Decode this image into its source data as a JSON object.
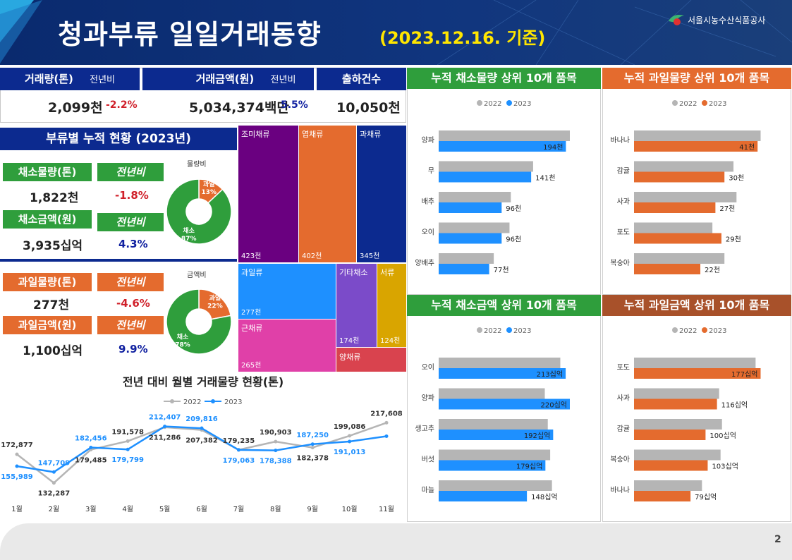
{
  "header": {
    "title": "청과부류 일일거래동향",
    "date": "(2023.12.16. 기준)",
    "org": "서울시농수산식품공사"
  },
  "summary": {
    "vol_label": "거래량(톤)",
    "yoy_label": "전년비",
    "amt_label": "거래금액(원)",
    "amt_yoy_label": "전년비",
    "cnt_label": "출하건수",
    "vol_value": "2,099천",
    "vol_yoy": "-2.2%",
    "amt_value": "5,034,374백만",
    "amt_yoy": "5.5%",
    "cnt_value": "10,050천"
  },
  "category": {
    "title": "부류별 누적 현황 (2023년)",
    "veg_vol_label": "채소물량(톤)",
    "veg_vol_yoy_label": "전년비",
    "veg_vol": "1,822천",
    "veg_vol_yoy": "-1.8%",
    "veg_amt_label": "채소금액(원)",
    "veg_amt_yoy_label": "전년비",
    "veg_amt": "3,935십억",
    "veg_amt_yoy": "4.3%",
    "fruit_vol_label": "과일물량(톤)",
    "fruit_vol_yoy_label": "전년비",
    "fruit_vol": "277천",
    "fruit_vol_yoy": "-4.6%",
    "fruit_amt_label": "과일금액(원)",
    "fruit_amt_yoy_label": "전년비",
    "fruit_amt": "1,100십억",
    "fruit_amt_yoy": "9.9%",
    "donut_vol_title": "물량비",
    "donut_amt_title": "금액비"
  },
  "treemap_labels": {
    "t1": "조미채류",
    "v1": "423천",
    "t2": "엽채류",
    "v2": "402천",
    "t3": "과채류",
    "v3": "345천",
    "t4": "과일류",
    "v4": "277천",
    "t5": "근채류",
    "v5": "265천",
    "t6": "기타채소",
    "v6": "174천",
    "t7": "서류",
    "v7": "124천",
    "t8": "양채류"
  },
  "panels": {
    "p1": "누적 채소물량 상위 10개 품목",
    "p2": "누적 과일물량 상위 10개 품목",
    "p3": "누적 채소금액 상위 10개 품목",
    "p4": "누적 과일금액 상위 10개 품목"
  },
  "page_number": "2",
  "colors": {
    "green": "#2f9e3c",
    "orange": "#e46b2e",
    "blue": "#1e90ff",
    "gray": "#b5b5b5",
    "navy": "#0c2a8f"
  },
  "chart_data": [
    {
      "type": "pie",
      "id": "vol_ratio",
      "title": "물량비",
      "labels": [
        "과일",
        "채소"
      ],
      "values": [
        13,
        87
      ],
      "value_labels": [
        "13%",
        "87%"
      ]
    },
    {
      "type": "pie",
      "id": "amt_ratio",
      "title": "금액비",
      "labels": [
        "과일",
        "채소"
      ],
      "values": [
        22,
        78
      ],
      "value_labels": [
        "22%",
        "78%"
      ]
    },
    {
      "type": "treemap",
      "id": "category_treemap",
      "labels": [
        "조미채류",
        "엽채류",
        "과채류",
        "과일류",
        "근채류",
        "기타채소",
        "서류",
        "양채류"
      ],
      "values": [
        423,
        402,
        345,
        277,
        265,
        174,
        124,
        null
      ],
      "value_labels": [
        "423천",
        "402천",
        "345천",
        "277천",
        "265천",
        "174천",
        "124천",
        ""
      ]
    },
    {
      "type": "line",
      "id": "monthly",
      "title": "전년 대비 월별 거래물량 현황(톤)",
      "categories": [
        "1월",
        "2월",
        "3월",
        "4월",
        "5월",
        "6월",
        "7월",
        "8월",
        "9월",
        "10월",
        "11월"
      ],
      "series": [
        {
          "name": "2022",
          "values": [
            172877,
            132287,
            179485,
            191578,
            211286,
            207382,
            179235,
            190903,
            182378,
            199086,
            217608
          ],
          "labels": [
            "172,877",
            "132,287",
            "179,485",
            "191,578",
            "211,286",
            "207,382",
            "179,235",
            "190,903",
            "182,378",
            "199,086",
            "217,608"
          ]
        },
        {
          "name": "2023",
          "values": [
            155989,
            147709,
            182456,
            179799,
            212407,
            209816,
            179063,
            178388,
            187250,
            191013,
            198500
          ],
          "labels": [
            "155,989",
            "147,709",
            "182,456",
            "179,799",
            "212,407",
            "209,816",
            "179,063",
            "178,388",
            "187,250",
            "191,013",
            ""
          ]
        }
      ],
      "legend": [
        "2022",
        "2023"
      ]
    },
    {
      "type": "bar",
      "id": "veg_vol",
      "legend": [
        "2022",
        "2023"
      ],
      "categories": [
        "양파",
        "무",
        "배추",
        "오이",
        "양배추"
      ],
      "series": [
        {
          "name": "2022",
          "values": [
            200,
            144,
            110,
            108,
            84
          ]
        },
        {
          "name": "2023",
          "values": [
            194,
            141,
            96,
            96,
            77
          ]
        }
      ],
      "labels": [
        "194천",
        "141천",
        "96천",
        "96천",
        "77천"
      ]
    },
    {
      "type": "bar",
      "id": "fruit_vol",
      "legend": [
        "2022",
        "2023"
      ],
      "categories": [
        "바나나",
        "감귤",
        "사과",
        "포도",
        "복숭아"
      ],
      "series": [
        {
          "name": "2022",
          "values": [
            42,
            33,
            34,
            26,
            30
          ]
        },
        {
          "name": "2023",
          "values": [
            41,
            30,
            27,
            29,
            22
          ]
        }
      ],
      "labels": [
        "41천",
        "30천",
        "27천",
        "29천",
        "22천"
      ]
    },
    {
      "type": "bar",
      "id": "veg_amt",
      "legend": [
        "2022",
        "2023"
      ],
      "categories": [
        "오이",
        "양파",
        "생고추",
        "버섯",
        "마늘"
      ],
      "series": [
        {
          "name": "2022",
          "values": [
            204,
            178,
            183,
            187,
            190
          ]
        },
        {
          "name": "2023",
          "values": [
            213,
            220,
            192,
            179,
            148
          ]
        }
      ],
      "labels": [
        "213십억",
        "220십억",
        "192십억",
        "179십억",
        "148십억"
      ]
    },
    {
      "type": "bar",
      "id": "fruit_amt",
      "legend": [
        "2022",
        "2023"
      ],
      "categories": [
        "포도",
        "사과",
        "감귤",
        "복숭아",
        "바나나"
      ],
      "series": [
        {
          "name": "2022",
          "values": [
            170,
            119,
            123,
            121,
            95
          ]
        },
        {
          "name": "2023",
          "values": [
            177,
            116,
            100,
            103,
            79
          ]
        }
      ],
      "labels": [
        "177십억",
        "116십억",
        "100십억",
        "103십억",
        "79십억"
      ]
    }
  ]
}
